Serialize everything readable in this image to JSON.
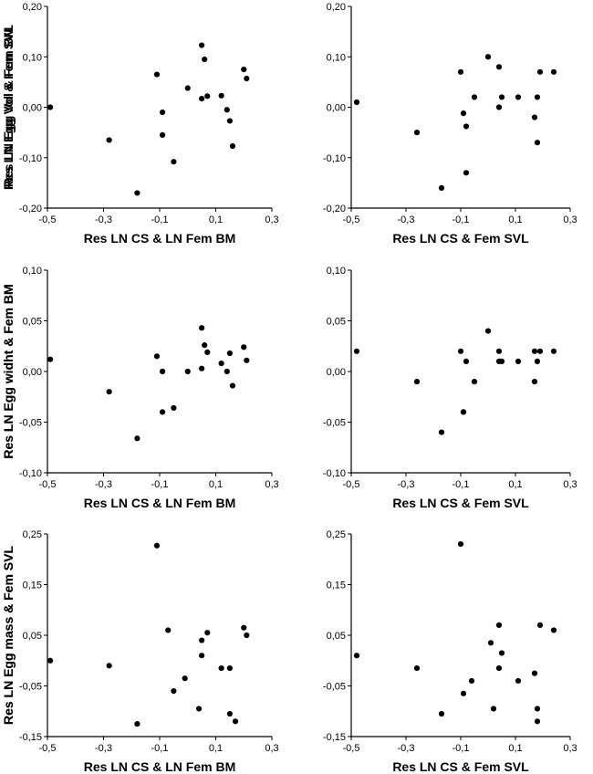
{
  "chart_data": [
    {
      "type": "scatter",
      "xlabel": "Res LN CS & LN Fem BM",
      "ylabel": "Res LN Egg Vol & Fem BM",
      "xlim": [
        -0.5,
        0.3
      ],
      "ylim": [
        -0.2,
        0.2
      ],
      "xticks": [
        "-0,5",
        "-0,3",
        "-0,1",
        "0,1",
        "0,3"
      ],
      "yticks": [
        "0,20",
        "0,10",
        "0,00",
        "-0,10",
        "-0,20"
      ],
      "x": [
        -0.49,
        -0.28,
        -0.18,
        -0.11,
        -0.09,
        -0.09,
        -0.05,
        0.0,
        0.05,
        0.05,
        0.06,
        0.07,
        0.12,
        0.14,
        0.15,
        0.16,
        0.2,
        0.21
      ],
      "y": [
        0.0,
        -0.065,
        -0.17,
        0.065,
        -0.01,
        -0.055,
        -0.108,
        0.038,
        0.123,
        0.017,
        0.095,
        0.022,
        0.023,
        -0.005,
        -0.027,
        -0.077,
        0.075,
        0.057
      ]
    },
    {
      "type": "scatter",
      "xlabel": "Res LN CS & Fem SVL",
      "ylabel": "Res LN Egg Vol & Fem SVL",
      "xlim": [
        -0.5,
        0.3
      ],
      "ylim": [
        -0.2,
        0.2
      ],
      "xticks": [
        "-0,5",
        "-0,3",
        "-0,1",
        "0,1",
        "0,3"
      ],
      "yticks": [
        "0,20",
        "0,10",
        "0,00",
        "-0,10",
        "-0,20"
      ],
      "x": [
        -0.48,
        -0.26,
        -0.17,
        -0.1,
        -0.09,
        -0.08,
        -0.08,
        -0.05,
        0.0,
        0.04,
        0.04,
        0.05,
        0.11,
        0.17,
        0.18,
        0.18,
        0.19,
        0.24
      ],
      "y": [
        0.01,
        -0.05,
        -0.16,
        0.07,
        -0.012,
        -0.13,
        -0.038,
        0.02,
        0.1,
        0.08,
        0.0,
        0.02,
        0.02,
        -0.02,
        -0.07,
        0.02,
        0.07,
        0.07
      ]
    },
    {
      "type": "scatter",
      "xlabel": "Res LN CS & LN Fem BM",
      "ylabel": "Res LN Egg widht & Fem BM",
      "xlim": [
        -0.5,
        0.3
      ],
      "ylim": [
        -0.1,
        0.1
      ],
      "xticks": [
        "-0,5",
        "-0,3",
        "-0,1",
        "0,1",
        "0,3"
      ],
      "yticks": [
        "0,10",
        "0,05",
        "0,00",
        "-0,05",
        "-0,10"
      ],
      "x": [
        -0.49,
        -0.28,
        -0.18,
        -0.11,
        -0.09,
        -0.09,
        -0.05,
        0.0,
        0.05,
        0.05,
        0.06,
        0.07,
        0.12,
        0.14,
        0.15,
        0.16,
        0.2,
        0.21
      ],
      "y": [
        0.012,
        -0.02,
        -0.066,
        0.015,
        0.0,
        -0.04,
        -0.036,
        0.0,
        0.043,
        0.003,
        0.026,
        0.019,
        0.008,
        0.0,
        0.018,
        -0.014,
        0.024,
        0.011
      ]
    },
    {
      "type": "scatter",
      "xlabel": "Res LN CS & Fem SVL",
      "ylabel": "Res LN Egg widht & Fem BM",
      "xlim": [
        -0.5,
        0.3
      ],
      "ylim": [
        -0.1,
        0.1
      ],
      "xticks": [
        "-0,5",
        "-0,3",
        "-0,1",
        "0,1",
        "0,3"
      ],
      "yticks": [
        "0,10",
        "0,05",
        "0,00",
        "-0,05",
        "-0,10"
      ],
      "x": [
        -0.48,
        -0.26,
        -0.17,
        -0.1,
        -0.09,
        -0.09,
        -0.08,
        -0.05,
        0.0,
        0.04,
        0.04,
        0.05,
        0.11,
        0.17,
        0.17,
        0.18,
        0.19,
        0.24
      ],
      "y": [
        0.02,
        -0.01,
        -0.06,
        0.02,
        -0.04,
        -0.04,
        0.01,
        -0.01,
        0.04,
        0.02,
        0.01,
        0.01,
        0.01,
        0.02,
        -0.01,
        0.01,
        0.02,
        0.02
      ]
    },
    {
      "type": "scatter",
      "xlabel": "Res LN CS & LN Fem BM",
      "ylabel": "Res LN Egg mass & Fem SVL",
      "xlim": [
        -0.5,
        0.3
      ],
      "ylim": [
        -0.15,
        0.25
      ],
      "xticks": [
        "-0,5",
        "-0,3",
        "-0,1",
        "0,1",
        "0,3"
      ],
      "yticks": [
        "0,25",
        "0,15",
        "0,05",
        "-0,05",
        "-0,15"
      ],
      "x": [
        -0.49,
        -0.28,
        -0.18,
        -0.11,
        -0.07,
        -0.05,
        -0.01,
        0.04,
        0.05,
        0.05,
        0.07,
        0.12,
        0.15,
        0.15,
        0.17,
        0.2,
        0.21
      ],
      "y": [
        0.0,
        -0.01,
        -0.125,
        0.227,
        0.06,
        -0.06,
        -0.035,
        -0.095,
        0.04,
        0.01,
        0.055,
        -0.015,
        -0.105,
        -0.015,
        -0.12,
        0.065,
        0.05
      ]
    },
    {
      "type": "scatter",
      "xlabel": "Res LN CS & Fem SVL",
      "ylabel": "Res LN Egg mass & Fem SVL",
      "xlim": [
        -0.5,
        0.3
      ],
      "ylim": [
        -0.15,
        0.25
      ],
      "xticks": [
        "-0,5",
        "-0,3",
        "-0,1",
        "0,1",
        "0,3"
      ],
      "yticks": [
        "0,25",
        "0,15",
        "0,05",
        "-0,05",
        "-0,15"
      ],
      "x": [
        -0.48,
        -0.26,
        -0.17,
        -0.1,
        -0.09,
        -0.06,
        0.01,
        0.02,
        0.04,
        0.04,
        0.05,
        0.11,
        0.17,
        0.18,
        0.18,
        0.19,
        0.24
      ],
      "y": [
        0.01,
        -0.015,
        -0.105,
        0.23,
        -0.065,
        -0.04,
        0.035,
        -0.095,
        0.07,
        -0.015,
        0.015,
        -0.04,
        -0.025,
        -0.095,
        -0.12,
        0.07,
        0.06
      ]
    }
  ]
}
